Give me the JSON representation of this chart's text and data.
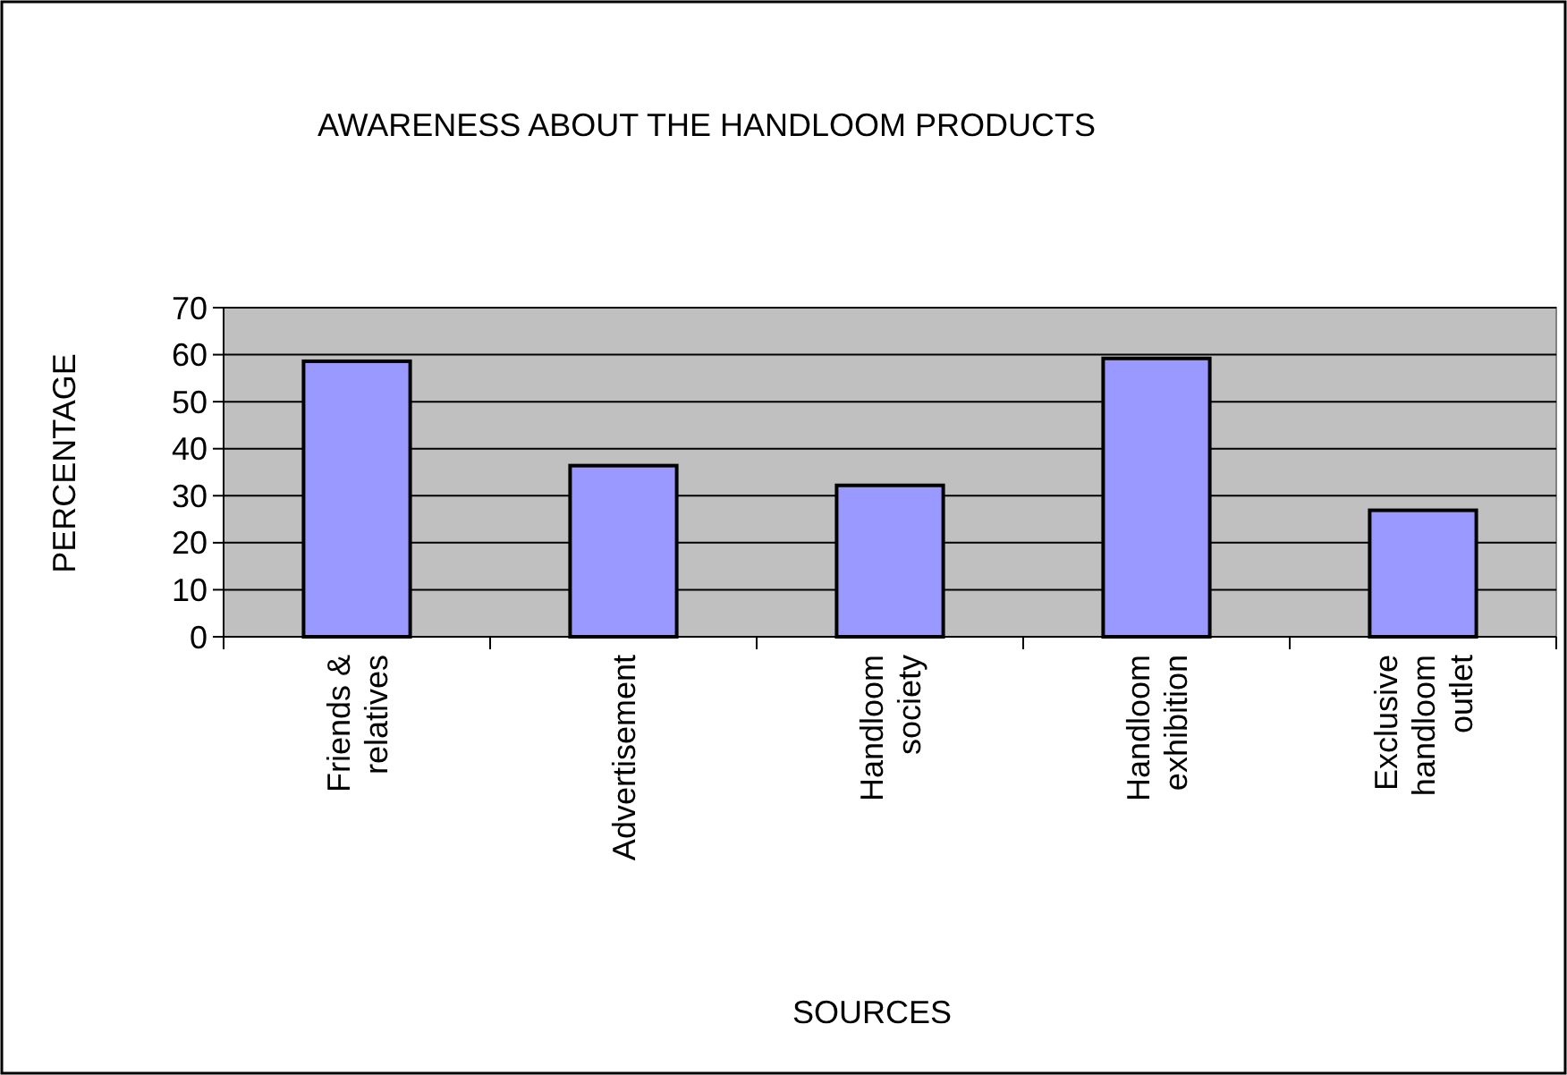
{
  "chart_data": {
    "type": "bar",
    "title": "AWARENESS ABOUT THE HANDLOOM PRODUCTS",
    "xlabel": "SOURCES",
    "ylabel": "PERCENTAGE",
    "categories": [
      "Friends & relatives",
      "Advertisement",
      "Handloom society",
      "Handloom exhibition",
      "Exclusive handloom outlet"
    ],
    "values": [
      58.6,
      36.4,
      32.2,
      59.2,
      26.9
    ],
    "color": "#9999ff",
    "ylim": [
      0,
      70
    ],
    "yticks": [
      0,
      10,
      20,
      30,
      40,
      50,
      60,
      70
    ],
    "grid": "y"
  }
}
